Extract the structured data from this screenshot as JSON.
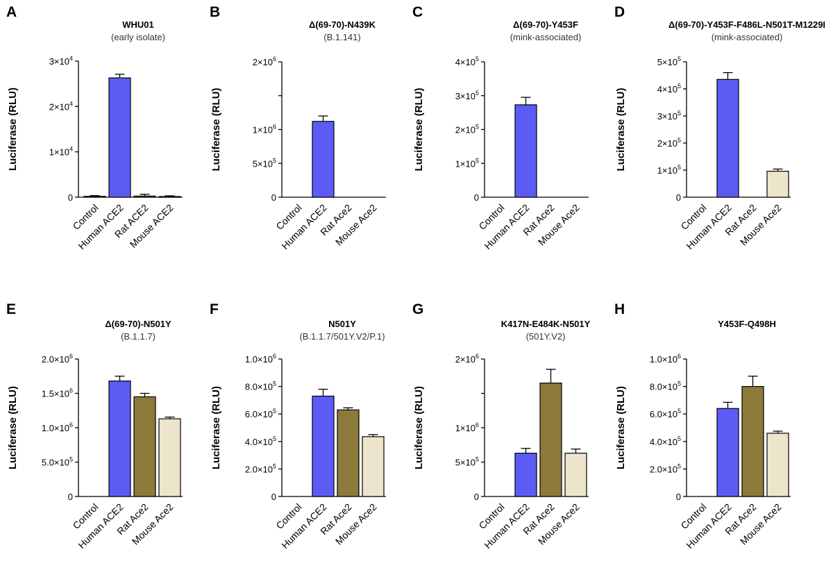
{
  "figure": {
    "colors": {
      "Control": "#ffffff",
      "Human ACE2": "#5c5cf5",
      "Rat ACE2": "#8c7a3a",
      "Mouse ACE2": "#ece5cc",
      "Rat Ace2": "#8c7a3a",
      "Mouse Ace2": "#ece5cc"
    }
  },
  "chart_data": [
    {
      "panel": "A",
      "type": "bar",
      "title": "WHU01",
      "subtitle": "(early isolate)",
      "ylabel": "Luciferase (RLU)",
      "ylim": [
        0,
        30000
      ],
      "yticks": [
        0,
        10000,
        20000,
        30000
      ],
      "ytick_labels": [
        {
          "m": "0",
          "e": ""
        },
        {
          "m": "1×10",
          "e": "4"
        },
        {
          "m": "2×10",
          "e": "4"
        },
        {
          "m": "3×10",
          "e": "4"
        }
      ],
      "categories": [
        "Control",
        "Human ACE2",
        "Rat ACE2",
        "Mouse ACE2"
      ],
      "values": [
        200,
        26300,
        250,
        150
      ],
      "errors": [
        150,
        800,
        400,
        150
      ]
    },
    {
      "panel": "B",
      "type": "bar",
      "title": "Δ(69-70)-N439K",
      "subtitle": "(B.1.141)",
      "ylabel": "Luciferase (RLU)",
      "ylim": [
        0,
        2000000
      ],
      "yticks": [
        0,
        500000,
        1000000,
        1500000,
        2000000
      ],
      "ytick_labels": [
        {
          "m": "0",
          "e": ""
        },
        {
          "m": "5×10",
          "e": "5"
        },
        {
          "m": "1×10",
          "e": "6"
        },
        {
          "m": "",
          "e": ""
        },
        {
          "m": "2×10",
          "e": "6"
        }
      ],
      "categories": [
        "Control",
        "Human ACE2",
        "Rat Ace2",
        "Mouse Ace2"
      ],
      "values": [
        0,
        1120000,
        0,
        0
      ],
      "errors": [
        0,
        80000,
        0,
        0
      ]
    },
    {
      "panel": "C",
      "type": "bar",
      "title": "Δ(69-70)-Y453F",
      "subtitle": "(mink-associated)",
      "ylabel": "Luciferase (RLU)",
      "ylim": [
        0,
        400000
      ],
      "yticks": [
        0,
        100000,
        200000,
        300000,
        400000
      ],
      "ytick_labels": [
        {
          "m": "0",
          "e": ""
        },
        {
          "m": "1×10",
          "e": "5"
        },
        {
          "m": "2×10",
          "e": "5"
        },
        {
          "m": "3×10",
          "e": "5"
        },
        {
          "m": "4×10",
          "e": "5"
        }
      ],
      "categories": [
        "Control",
        "Human ACE2",
        "Rat Ace2",
        "Mouse Ace2"
      ],
      "values": [
        0,
        273000,
        0,
        0
      ],
      "errors": [
        0,
        22000,
        0,
        0
      ]
    },
    {
      "panel": "D",
      "type": "bar",
      "title": "Δ(69-70)-Y453F-F486L-N501T-M1229I",
      "subtitle": "(mink-associated)",
      "ylabel": "Luciferase (RLU)",
      "ylim": [
        0,
        500000
      ],
      "yticks": [
        0,
        100000,
        200000,
        300000,
        400000,
        500000
      ],
      "ytick_labels": [
        {
          "m": "0",
          "e": ""
        },
        {
          "m": "1×10",
          "e": "5"
        },
        {
          "m": "2×10",
          "e": "5"
        },
        {
          "m": "3×10",
          "e": "5"
        },
        {
          "m": "4×10",
          "e": "5"
        },
        {
          "m": "5×10",
          "e": "5"
        }
      ],
      "categories": [
        "Control",
        "Human ACE2",
        "Rat Ace2",
        "Mouse Ace2"
      ],
      "values": [
        0,
        435000,
        0,
        96000
      ],
      "errors": [
        0,
        25000,
        0,
        8000
      ]
    },
    {
      "panel": "E",
      "type": "bar",
      "title": "Δ(69-70)-N501Y",
      "subtitle": "(B.1.1.7)",
      "ylabel": "Luciferase (RLU)",
      "ylim": [
        0,
        2000000
      ],
      "yticks": [
        0,
        500000,
        1000000,
        1500000,
        2000000
      ],
      "ytick_labels": [
        {
          "m": "0",
          "e": ""
        },
        {
          "m": "5.0×10",
          "e": "5"
        },
        {
          "m": "1.0×10",
          "e": "6"
        },
        {
          "m": "1.5×10",
          "e": "6"
        },
        {
          "m": "2.0×10",
          "e": "6"
        }
      ],
      "categories": [
        "Control",
        "Human ACE2",
        "Rat Ace2",
        "Mouse Ace2"
      ],
      "values": [
        0,
        1680000,
        1450000,
        1130000
      ],
      "errors": [
        0,
        70000,
        50000,
        25000
      ]
    },
    {
      "panel": "F",
      "type": "bar",
      "title": "N501Y",
      "subtitle": "(B.1.1.7/501Y.V2/P.1)",
      "ylabel": "Luciferase (RLU)",
      "ylim": [
        0,
        1000000
      ],
      "yticks": [
        0,
        200000,
        400000,
        600000,
        800000,
        1000000
      ],
      "ytick_labels": [
        {
          "m": "0",
          "e": ""
        },
        {
          "m": "2.0×10",
          "e": "5"
        },
        {
          "m": "4.0×10",
          "e": "5"
        },
        {
          "m": "6.0×10",
          "e": "5"
        },
        {
          "m": "8.0×10",
          "e": "5"
        },
        {
          "m": "1.0×10",
          "e": "6"
        }
      ],
      "categories": [
        "Control",
        "Human ACE2",
        "Rat Ace2",
        "Mouse Ace2"
      ],
      "values": [
        0,
        730000,
        630000,
        435000
      ],
      "errors": [
        0,
        50000,
        15000,
        15000
      ]
    },
    {
      "panel": "G",
      "type": "bar",
      "title": "K417N-E484K-N501Y",
      "subtitle": "(501Y.V2)",
      "ylabel": "Luciferase (RLU)",
      "ylim": [
        0,
        2000000
      ],
      "yticks": [
        0,
        500000,
        1000000,
        1500000,
        2000000
      ],
      "ytick_labels": [
        {
          "m": "0",
          "e": ""
        },
        {
          "m": "5×10",
          "e": "5"
        },
        {
          "m": "1×10",
          "e": "6"
        },
        {
          "m": "",
          "e": ""
        },
        {
          "m": "2×10",
          "e": "6"
        }
      ],
      "categories": [
        "Control",
        "Human ACE2",
        "Rat Ace2",
        "Mouse Ace2"
      ],
      "values": [
        0,
        630000,
        1650000,
        630000
      ],
      "errors": [
        0,
        70000,
        200000,
        60000
      ]
    },
    {
      "panel": "H",
      "type": "bar",
      "title": "Y453F-Q498H",
      "subtitle": "",
      "ylabel": "Luciferase (RLU)",
      "ylim": [
        0,
        1000000
      ],
      "yticks": [
        0,
        200000,
        400000,
        600000,
        800000,
        1000000
      ],
      "ytick_labels": [
        {
          "m": "0",
          "e": ""
        },
        {
          "m": "2.0×10",
          "e": "5"
        },
        {
          "m": "4.0×10",
          "e": "5"
        },
        {
          "m": "6.0×10",
          "e": "5"
        },
        {
          "m": "8.0×10",
          "e": "5"
        },
        {
          "m": "1.0×10",
          "e": "6"
        }
      ],
      "categories": [
        "Control",
        "Human ACE2",
        "Rat Ace2",
        "Mouse Ace2"
      ],
      "values": [
        0,
        640000,
        800000,
        460000
      ],
      "errors": [
        0,
        45000,
        75000,
        15000
      ]
    }
  ]
}
